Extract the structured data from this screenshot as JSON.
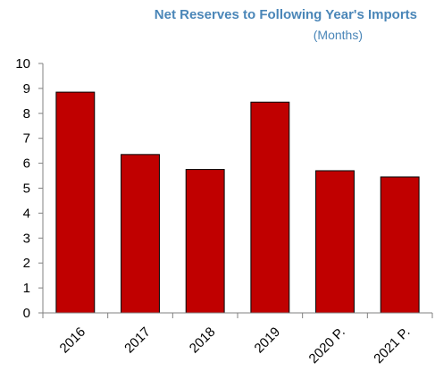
{
  "chart_data": {
    "type": "bar",
    "title": "Net Reserves to Following Year's Imports",
    "subtitle": "(Months)",
    "categories": [
      "2016",
      "2017",
      "2018",
      "2019",
      "2020 P.",
      "2021 P."
    ],
    "values": [
      8.85,
      6.35,
      5.75,
      8.45,
      5.7,
      5.45
    ],
    "ylim": [
      0,
      10
    ],
    "yticks": [
      "0",
      "1",
      "2",
      "3",
      "4",
      "5",
      "6",
      "7",
      "8",
      "9",
      "10"
    ],
    "xlabel": "",
    "ylabel": "",
    "grid": false,
    "bar_color": "#c00000",
    "bar_edge_color": "#000000",
    "title_color": "#4a86b8"
  }
}
